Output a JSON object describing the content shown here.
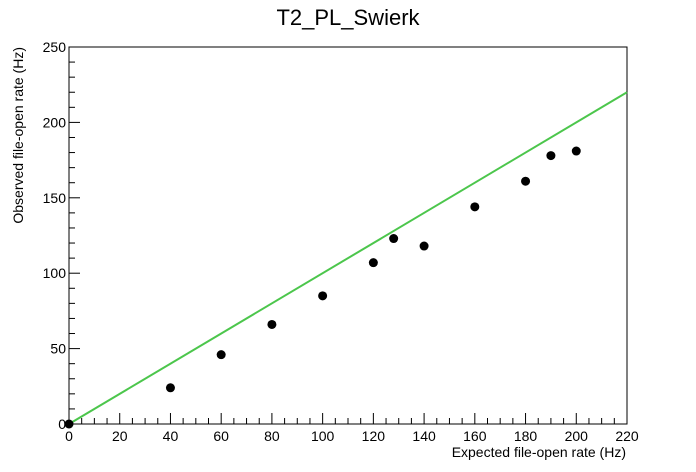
{
  "chart_data": {
    "type": "scatter",
    "title": "T2_PL_Swierk",
    "xlabel": "Expected file-open rate (Hz)",
    "ylabel": "Observed file-open rate (Hz)",
    "xlim": [
      0,
      220
    ],
    "ylim": [
      0,
      250
    ],
    "x_ticks": [
      "0",
      "20",
      "40",
      "60",
      "80",
      "100",
      "120",
      "140",
      "160",
      "180",
      "200",
      "220"
    ],
    "y_ticks": [
      "0",
      "50",
      "100",
      "150",
      "200",
      "250"
    ],
    "grid": false,
    "series": [
      {
        "values": [
          {
            "x": 0,
            "y": 0
          },
          {
            "x": 40,
            "y": 24
          },
          {
            "x": 60,
            "y": 46
          },
          {
            "x": 80,
            "y": 66
          },
          {
            "x": 100,
            "y": 85
          },
          {
            "x": 120,
            "y": 107
          },
          {
            "x": 128,
            "y": 123
          },
          {
            "x": 140,
            "y": 118
          },
          {
            "x": 160,
            "y": 144
          },
          {
            "x": 180,
            "y": 161
          },
          {
            "x": 190,
            "y": 178
          },
          {
            "x": 200,
            "y": 181
          }
        ],
        "color": "#000000"
      },
      {
        "type": "line",
        "values": [
          {
            "x": 0,
            "y": 0
          },
          {
            "x": 220,
            "y": 220
          }
        ],
        "color": "#4cc64c"
      }
    ]
  }
}
